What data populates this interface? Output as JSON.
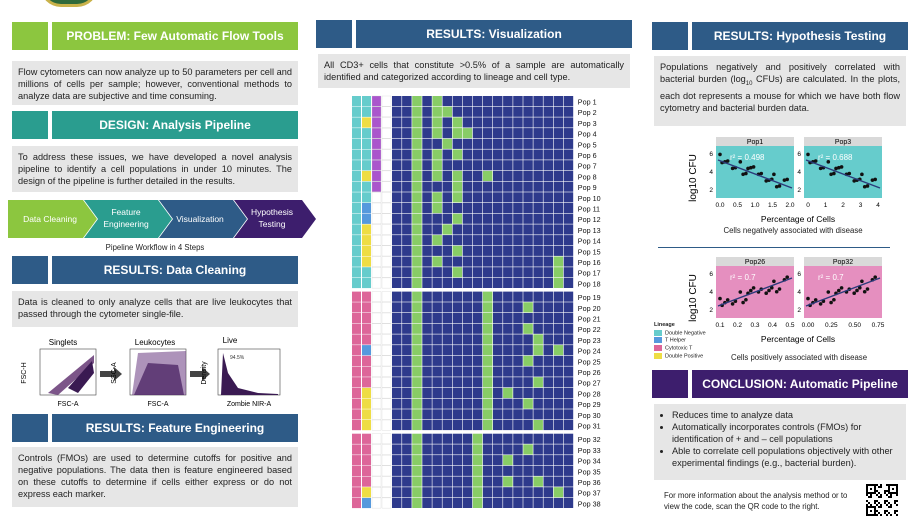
{
  "left": {
    "problem_title": "PROBLEM: Few Automatic Flow Tools",
    "problem_text": "Flow cytometers can now analyze up to 50 parameters per cell and millions of cells per sample; however, conventional methods to analyze data are subjective and time consuming.",
    "design_title": "DESIGN: Analysis Pipeline",
    "design_text": "To address these issues, we have developed a novel analysis pipeline to identify a cell populations in under 10 minutes. The design of the pipeline is further detailed in the results.",
    "steps": [
      "Data Cleaning",
      "Feature Engineering",
      "Visualization",
      "Hypothesis Testing"
    ],
    "steps_caption": "Pipeline Workflow in 4 Steps",
    "cleaning_title": "RESULTS: Data Cleaning",
    "cleaning_text": "Data is cleaned to only analyze cells that are live leukocytes that passed through the cytometer single-file.",
    "gates": [
      {
        "title": "Singlets",
        "xlabel": "FSC-A",
        "ylabel": "FSC-H"
      },
      {
        "title": "Leukocytes",
        "xlabel": "FSC-A",
        "ylabel": "SSC-A"
      },
      {
        "title": "Live",
        "xlabel": "Zombie NIR-A",
        "ylabel": "Density"
      }
    ],
    "feature_title": "RESULTS: Feature Engineering",
    "feature_text": "Controls (FMOs) are used to determine cutoffs for positive and negative populations. The data then is feature engineered based on these cutoffs  to determine if cells either express or do not express each marker."
  },
  "middle": {
    "title": "RESULTS: Visualization",
    "text": "All CD3+ cells that constitute >0.5% of a sample are automatically identified and categorized according to lineage and cell type.",
    "pops": [
      "Pop 1",
      "Pop 2",
      "Pop 3",
      "Pop 4",
      "Pop 5",
      "Pop 6",
      "Pop 7",
      "Pop 8",
      "Pop 9",
      "Pop 10",
      "Pop 11",
      "Pop 12",
      "Pop 13",
      "Pop 14",
      "Pop 15",
      "Pop 16",
      "Pop 17",
      "Pop 18",
      "Pop 19",
      "Pop 20",
      "Pop 21",
      "Pop 22",
      "Pop 23",
      "Pop 24",
      "Pop 25",
      "Pop 26",
      "Pop 27",
      "Pop 28",
      "Pop 29",
      "Pop 30",
      "Pop 31",
      "Pop 32",
      "Pop 33",
      "Pop 34",
      "Pop 35",
      "Pop 36",
      "Pop 37",
      "Pop 38"
    ]
  },
  "right": {
    "title": "RESULTS: Hypothesis Testing",
    "text_a": "Populations negatively and positively correlated with bacterial burden (log",
    "text_sub": "10",
    "text_b": " CFUs) are calculated. In the plots, each dot represents a mouse for which we have both flow cytometry and bacterial burden data.",
    "neg_ylabel": "log10 CFU",
    "neg_xlabel": "Percentage of Cells",
    "neg_caption": "Cells negatively associated with disease",
    "neg_panels": [
      {
        "title": "Pop1",
        "r2": "r² = 0.498",
        "xticks": [
          "0.0",
          "0.5",
          "1.0",
          "1.5",
          "2.0"
        ]
      },
      {
        "title": "Pop3",
        "r2": "r² = 0.688",
        "xticks": [
          "0",
          "1",
          "2",
          "3",
          "4"
        ]
      }
    ],
    "pos_ylabel": "log10 CFU",
    "pos_xlabel": "Percentage of Cells",
    "pos_caption": "Cells positively associated with disease",
    "pos_panels": [
      {
        "title": "Pop26",
        "r2": "r² = 0.7",
        "xticks": [
          "0.1",
          "0.2",
          "0.3",
          "0.4",
          "0.5"
        ]
      },
      {
        "title": "Pop32",
        "r2": "r² = 0.7",
        "xticks": [
          "0.00",
          "0.25",
          "0.50",
          "0.75"
        ]
      }
    ],
    "yticks": [
      "2",
      "4",
      "6"
    ],
    "lineage_title": "Lineage",
    "lineage": [
      "Double Negative",
      "T Helper",
      "Cytotoxic T",
      "Double Positive"
    ],
    "lineage_colors": [
      "#66cccc",
      "#5599dd",
      "#dd6699",
      "#eedd44"
    ],
    "conclusion_title": "CONCLUSION: Automatic Pipeline",
    "bullets": [
      "Reduces time to analyze data",
      "Automatically incorporates controls (FMOs) for identification of + and – cell populations",
      "Able to correlate cell populations objectively with other experimental findings (e.g., bacterial burden)."
    ],
    "footer": "For more information about the analysis method or to view the code, scan the QR code to the right."
  },
  "colors": {
    "green": "#8cc63f",
    "teal": "#2a9d8f",
    "navy": "#2e5b87",
    "purple": "#3d1e6d"
  }
}
